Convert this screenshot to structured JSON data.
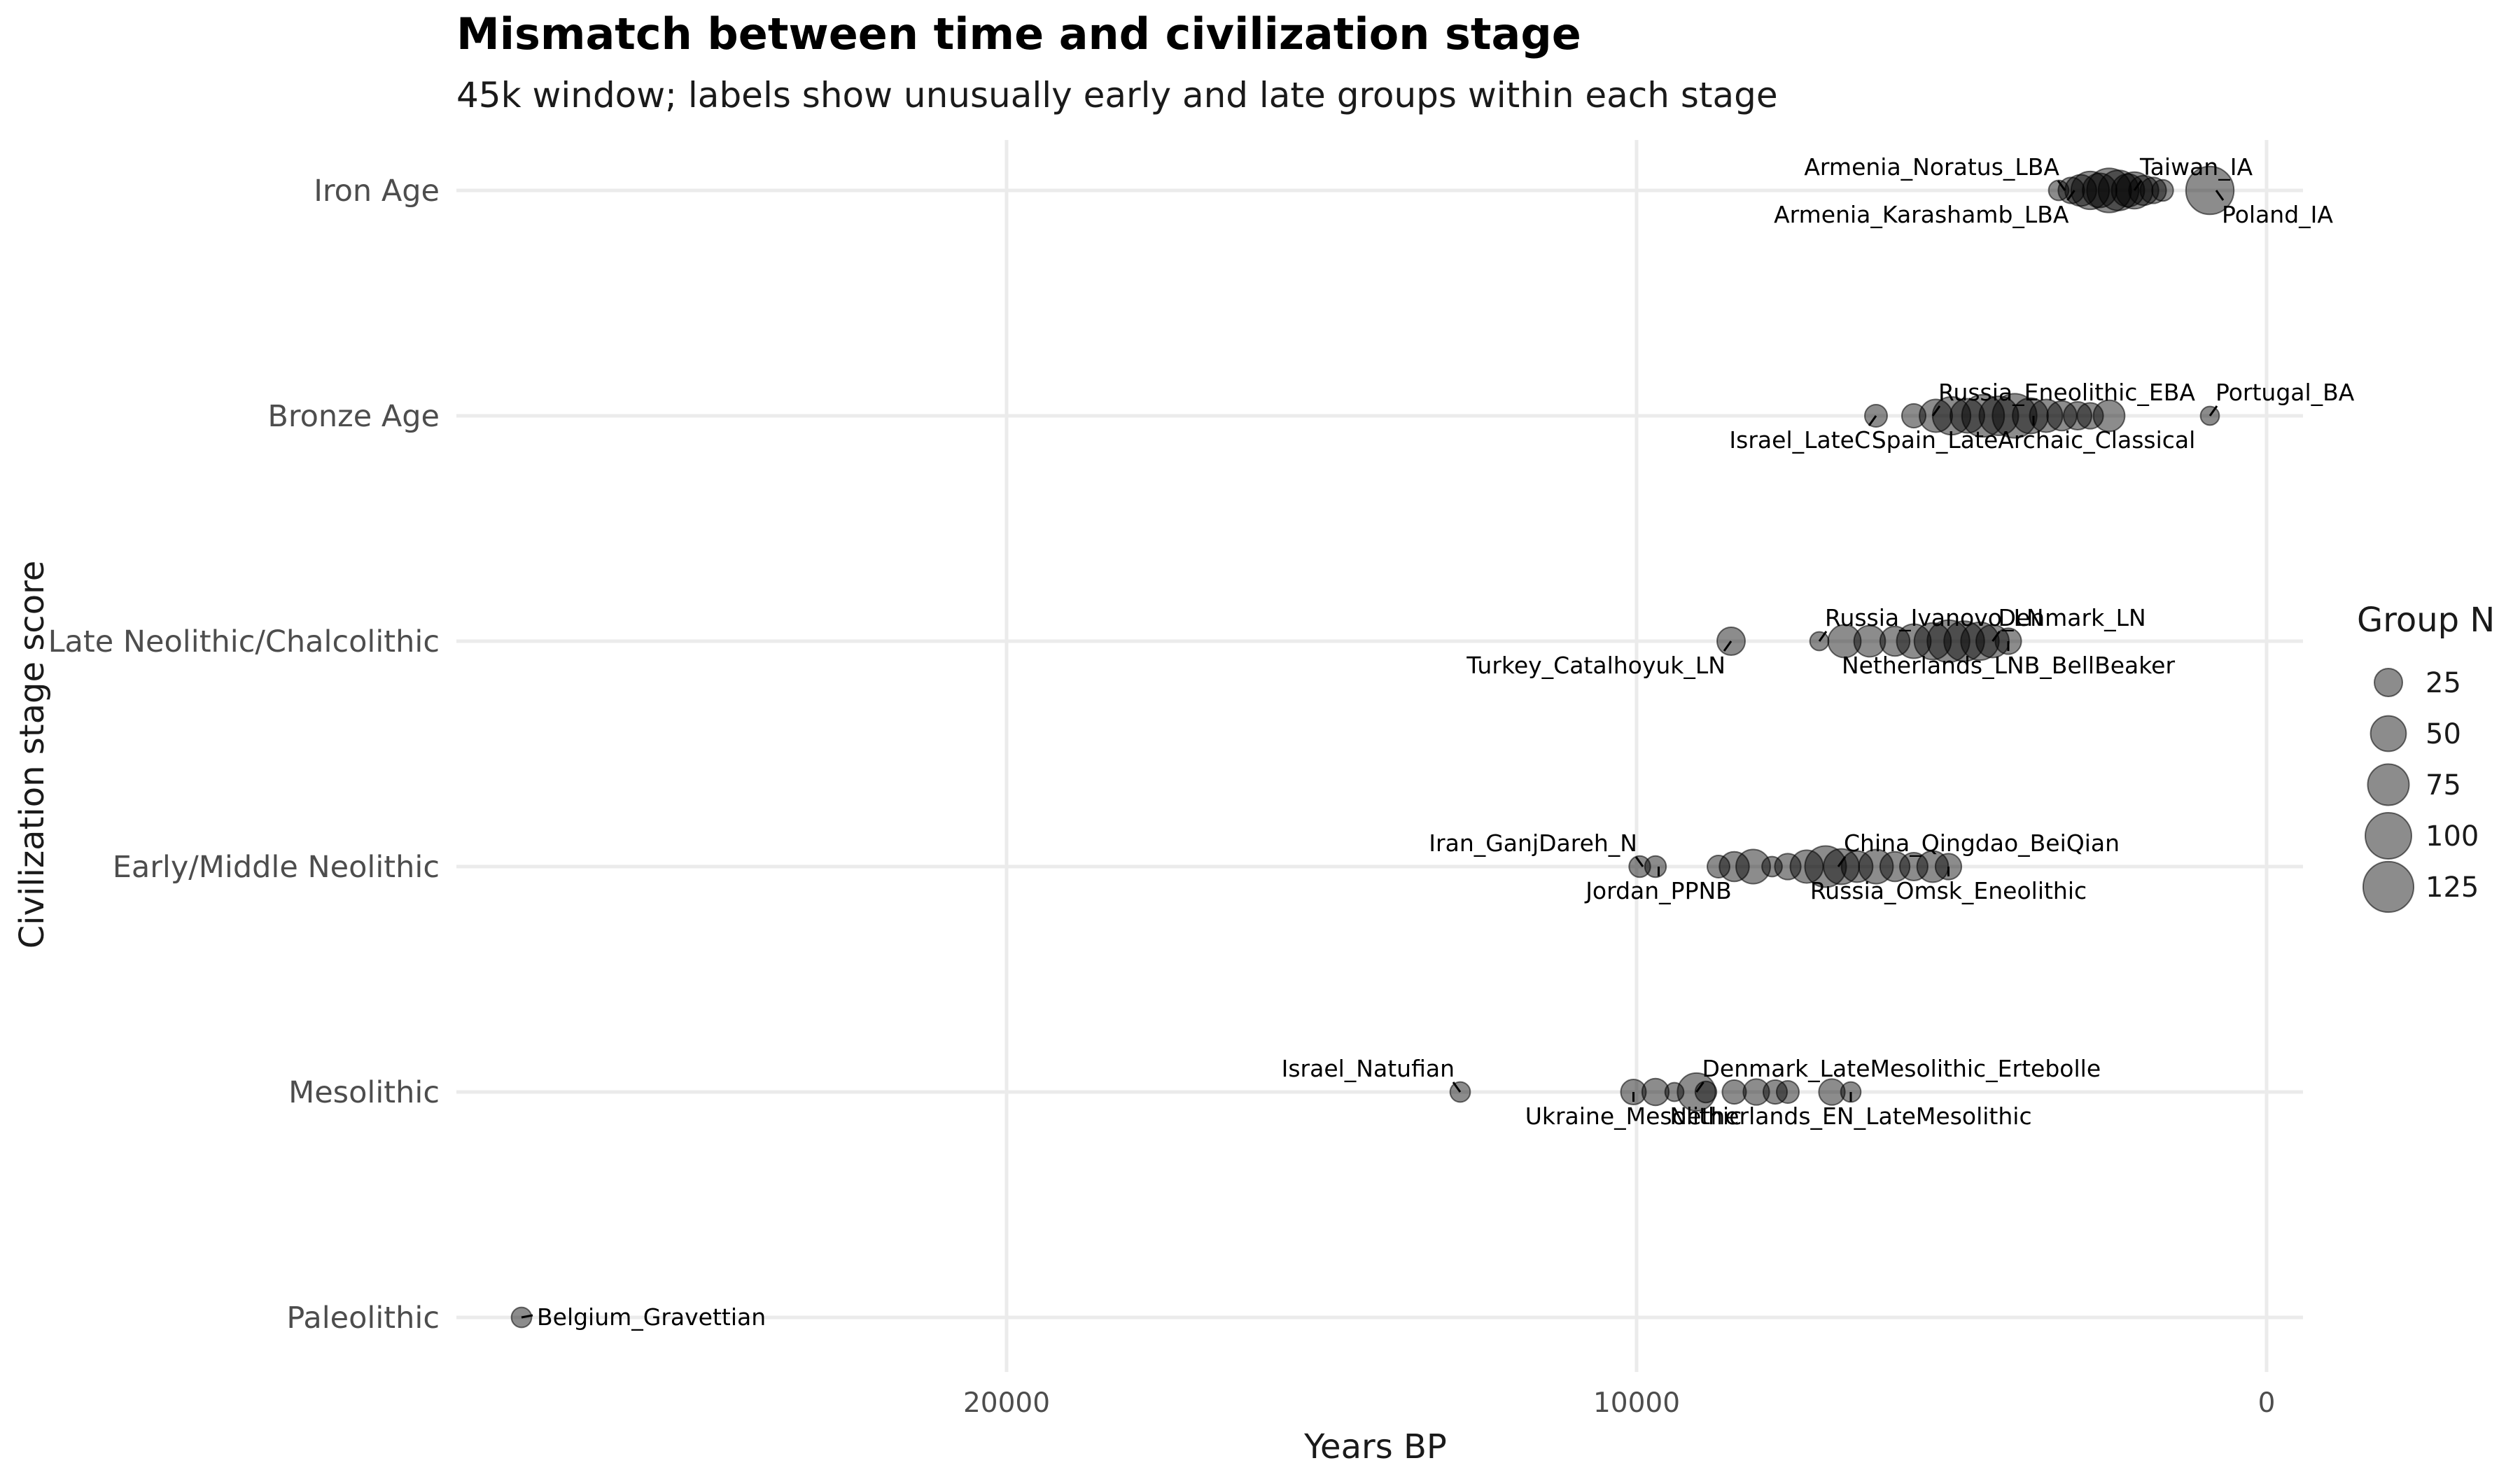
{
  "chart_data": {
    "type": "scatter",
    "title": "Mismatch between time and civilization stage",
    "subtitle": "45k window; labels show unusually early and late groups within each stage",
    "xlabel": "Years BP",
    "ylabel": "Civilization stage score",
    "x_reversed": true,
    "xlim": [
      29000,
      -500
    ],
    "xticks": [
      20000,
      10000,
      0
    ],
    "categories": [
      "Paleolithic",
      "Mesolithic",
      "Early/Middle Neolithic",
      "Late Neolithic/Chalcolithic",
      "Bronze Age",
      "Iron Age"
    ],
    "legend": {
      "title": "Group N",
      "placement": "right",
      "entries": [
        25,
        50,
        75,
        100,
        125
      ]
    },
    "points": [
      {
        "stage": 5,
        "x": 3300,
        "n": 8
      },
      {
        "stage": 5,
        "x": 3100,
        "n": 20
      },
      {
        "stage": 5,
        "x": 2950,
        "n": 35
      },
      {
        "stage": 5,
        "x": 2800,
        "n": 60
      },
      {
        "stage": 5,
        "x": 2650,
        "n": 45
      },
      {
        "stage": 5,
        "x": 2500,
        "n": 90
      },
      {
        "stage": 5,
        "x": 2350,
        "n": 70
      },
      {
        "stage": 5,
        "x": 2200,
        "n": 40
      },
      {
        "stage": 5,
        "x": 2100,
        "n": 55
      },
      {
        "stage": 5,
        "x": 1950,
        "n": 30
      },
      {
        "stage": 5,
        "x": 1800,
        "n": 20
      },
      {
        "stage": 5,
        "x": 1650,
        "n": 10
      },
      {
        "stage": 5,
        "x": 900,
        "n": 110
      },
      {
        "stage": 4,
        "x": 6200,
        "n": 12
      },
      {
        "stage": 4,
        "x": 5600,
        "n": 15
      },
      {
        "stage": 4,
        "x": 5250,
        "n": 40
      },
      {
        "stage": 4,
        "x": 5000,
        "n": 60
      },
      {
        "stage": 4,
        "x": 4750,
        "n": 45
      },
      {
        "stage": 4,
        "x": 4500,
        "n": 80
      },
      {
        "stage": 4,
        "x": 4250,
        "n": 65
      },
      {
        "stage": 4,
        "x": 4000,
        "n": 90
      },
      {
        "stage": 4,
        "x": 3750,
        "n": 50
      },
      {
        "stage": 4,
        "x": 3500,
        "n": 40
      },
      {
        "stage": 4,
        "x": 3250,
        "n": 30
      },
      {
        "stage": 4,
        "x": 3000,
        "n": 25
      },
      {
        "stage": 4,
        "x": 2800,
        "n": 20
      },
      {
        "stage": 4,
        "x": 2500,
        "n": 35
      },
      {
        "stage": 4,
        "x": 900,
        "n": 6
      },
      {
        "stage": 3,
        "x": 8500,
        "n": 25
      },
      {
        "stage": 3,
        "x": 7100,
        "n": 6
      },
      {
        "stage": 3,
        "x": 6700,
        "n": 40
      },
      {
        "stage": 3,
        "x": 6300,
        "n": 35
      },
      {
        "stage": 3,
        "x": 5900,
        "n": 30
      },
      {
        "stage": 3,
        "x": 5600,
        "n": 45
      },
      {
        "stage": 3,
        "x": 5300,
        "n": 55
      },
      {
        "stage": 3,
        "x": 5050,
        "n": 80
      },
      {
        "stage": 3,
        "x": 4800,
        "n": 70
      },
      {
        "stage": 3,
        "x": 4550,
        "n": 60
      },
      {
        "stage": 3,
        "x": 4350,
        "n": 40
      },
      {
        "stage": 3,
        "x": 4100,
        "n": 20
      },
      {
        "stage": 2,
        "x": 9950,
        "n": 10
      },
      {
        "stage": 2,
        "x": 9700,
        "n": 10
      },
      {
        "stage": 2,
        "x": 8700,
        "n": 12
      },
      {
        "stage": 2,
        "x": 8450,
        "n": 30
      },
      {
        "stage": 2,
        "x": 8150,
        "n": 45
      },
      {
        "stage": 2,
        "x": 7850,
        "n": 8
      },
      {
        "stage": 2,
        "x": 7600,
        "n": 20
      },
      {
        "stage": 2,
        "x": 7300,
        "n": 40
      },
      {
        "stage": 2,
        "x": 7000,
        "n": 75
      },
      {
        "stage": 2,
        "x": 6750,
        "n": 50
      },
      {
        "stage": 2,
        "x": 6500,
        "n": 35
      },
      {
        "stage": 2,
        "x": 6200,
        "n": 45
      },
      {
        "stage": 2,
        "x": 5900,
        "n": 30
      },
      {
        "stage": 2,
        "x": 5600,
        "n": 25
      },
      {
        "stage": 2,
        "x": 5300,
        "n": 35
      },
      {
        "stage": 2,
        "x": 5050,
        "n": 20
      },
      {
        "stage": 1,
        "x": 12800,
        "n": 8
      },
      {
        "stage": 1,
        "x": 10050,
        "n": 18
      },
      {
        "stage": 1,
        "x": 9700,
        "n": 22
      },
      {
        "stage": 1,
        "x": 9400,
        "n": 6
      },
      {
        "stage": 1,
        "x": 9050,
        "n": 60
      },
      {
        "stage": 1,
        "x": 8900,
        "n": 10
      },
      {
        "stage": 1,
        "x": 8450,
        "n": 15
      },
      {
        "stage": 1,
        "x": 8100,
        "n": 20
      },
      {
        "stage": 1,
        "x": 7800,
        "n": 15
      },
      {
        "stage": 1,
        "x": 7600,
        "n": 12
      },
      {
        "stage": 1,
        "x": 6900,
        "n": 20
      },
      {
        "stage": 1,
        "x": 6600,
        "n": 8
      },
      {
        "stage": 0,
        "x": 27700,
        "n": 8
      }
    ],
    "annotations": [
      {
        "label": "Armenia_Noratus_LBA",
        "stage": 5,
        "x": 3200,
        "pos": "above-left"
      },
      {
        "label": "Taiwan_IA",
        "stage": 5,
        "x": 2100,
        "pos": "above-right"
      },
      {
        "label": "Armenia_Karashamb_LBA",
        "stage": 5,
        "x": 3050,
        "pos": "below-left"
      },
      {
        "label": "Poland_IA",
        "stage": 5,
        "x": 800,
        "pos": "below-right"
      },
      {
        "label": "Russia_Eneolithic_EBA",
        "stage": 4,
        "x": 5300,
        "pos": "above-right"
      },
      {
        "label": "Portugal_BA",
        "stage": 4,
        "x": 900,
        "pos": "above-right"
      },
      {
        "label": "Israel_LateC",
        "stage": 4,
        "x": 6200,
        "pos": "below-left"
      },
      {
        "label": "Spain_LateArchaic_Classical",
        "stage": 4,
        "x": 3700,
        "pos": "below"
      },
      {
        "label": "Russia_Ivanovo_LN",
        "stage": 3,
        "x": 7100,
        "pos": "above-right"
      },
      {
        "label": "Denmark_LN",
        "stage": 3,
        "x": 4350,
        "pos": "above-right"
      },
      {
        "label": "Turkey_Catalhoyuk_LN",
        "stage": 3,
        "x": 8500,
        "pos": "below-left"
      },
      {
        "label": "Netherlands_LNB_BellBeaker",
        "stage": 3,
        "x": 4100,
        "pos": "below"
      },
      {
        "label": "Iran_GanjDareh_N",
        "stage": 2,
        "x": 9900,
        "pos": "above-left"
      },
      {
        "label": "China_Qingdao_BeiQian",
        "stage": 2,
        "x": 6800,
        "pos": "above-right"
      },
      {
        "label": "Jordan_PPNB",
        "stage": 2,
        "x": 9650,
        "pos": "below"
      },
      {
        "label": "Russia_Omsk_Eneolithic",
        "stage": 2,
        "x": 5050,
        "pos": "below"
      },
      {
        "label": "Israel_Natufian",
        "stage": 1,
        "x": 12800,
        "pos": "above-left"
      },
      {
        "label": "Denmark_LateMesolithic_Ertebolle",
        "stage": 1,
        "x": 9050,
        "pos": "above-right"
      },
      {
        "label": "Ukraine_Mesolithic",
        "stage": 1,
        "x": 10050,
        "pos": "below"
      },
      {
        "label": "Netherlands_EN_LateMesolithic",
        "stage": 1,
        "x": 6600,
        "pos": "below"
      },
      {
        "label": "Belgium_Gravettian",
        "stage": 0,
        "x": 27700,
        "pos": "right"
      }
    ]
  }
}
